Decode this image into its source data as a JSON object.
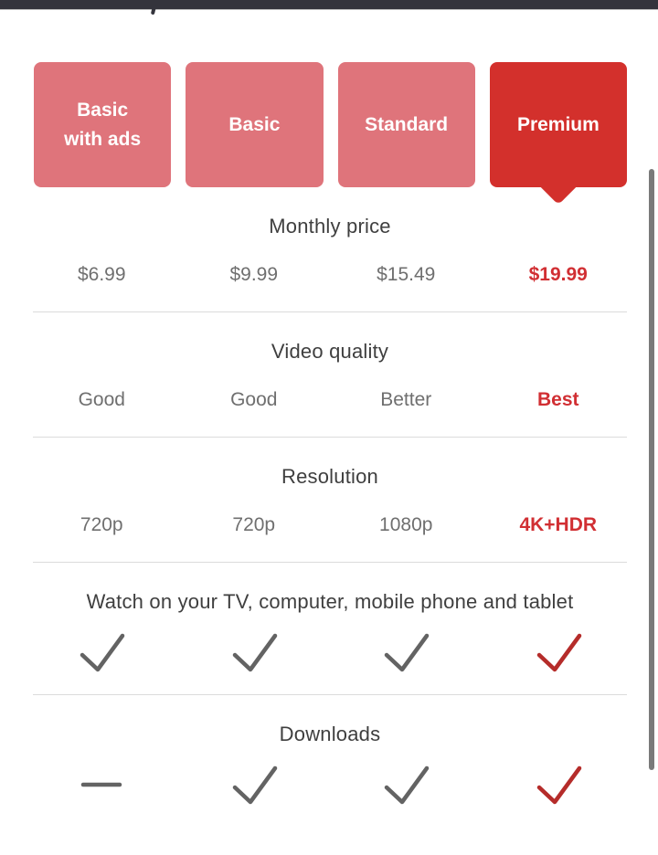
{
  "plans": {
    "items": [
      {
        "id": "basic-with-ads",
        "label": "Basic\nwith ads",
        "selected": false
      },
      {
        "id": "basic",
        "label": "Basic",
        "selected": false
      },
      {
        "id": "standard",
        "label": "Standard",
        "selected": false
      },
      {
        "id": "premium",
        "label": "Premium",
        "selected": true
      }
    ]
  },
  "features": [
    {
      "id": "monthly-price",
      "heading": "Monthly price",
      "kind": "text",
      "values": [
        "$6.99",
        "$9.99",
        "$15.49",
        "$19.99"
      ],
      "divider_after": true
    },
    {
      "id": "video-quality",
      "heading": "Video quality",
      "kind": "text",
      "values": [
        "Good",
        "Good",
        "Better",
        "Best"
      ],
      "divider_after": true
    },
    {
      "id": "resolution",
      "heading": "Resolution",
      "kind": "text",
      "values": [
        "720p",
        "720p",
        "1080p",
        "4K+HDR"
      ],
      "divider_after": true
    },
    {
      "id": "devices",
      "heading": "Watch on your TV, computer, mobile phone and tablet",
      "kind": "icon",
      "values": [
        "check",
        "check",
        "check",
        "check"
      ],
      "divider_after": true
    },
    {
      "id": "downloads",
      "heading": "Downloads",
      "kind": "icon",
      "values": [
        "dash",
        "check",
        "check",
        "check"
      ],
      "divider_after": false
    }
  ],
  "icons": {
    "check": "check-icon",
    "dash": "dash-icon"
  },
  "colors": {
    "topbar": "#34343c",
    "plan_card": "#df747b",
    "plan_card_selected": "#d3302c",
    "heading_text": "#3f3f3f",
    "value_text": "#6f6f6f",
    "accent_text": "#d12f33",
    "check_gray": "#636363",
    "check_red": "#b52c2a",
    "divider": "#dbdbdb",
    "scrollbar": "#7a7a7a"
  }
}
